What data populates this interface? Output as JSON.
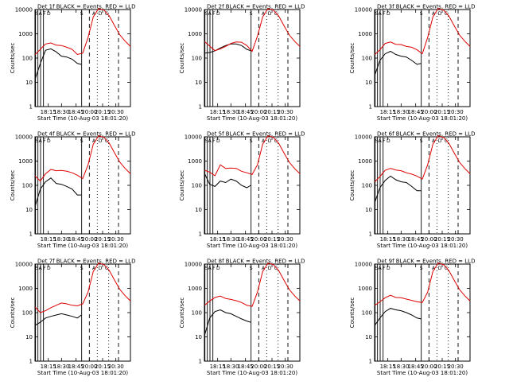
{
  "chart_data": {
    "type": "line",
    "yscale": "log",
    "ylim": [
      1,
      10000
    ],
    "ylabel": "Counts/sec",
    "xlabel": "Start Time (10-Aug-03 18:01:20)",
    "x_range_minutes": [
      9,
      45
    ],
    "x_ticks": [
      "18:15",
      "18:30",
      "18:45",
      "20:00",
      "20:15",
      "20:30"
    ],
    "y_ticks": [
      "1",
      "10",
      "100",
      "1000",
      "10000"
    ],
    "flag_labels": [
      "S",
      "A",
      "F",
      "D",
      "S",
      "A",
      "D",
      "C"
    ],
    "colors": {
      "events": "#000000",
      "lld": "#e00000",
      "axes": "#000000",
      "background": "#ffffff"
    },
    "panels": [
      {
        "title": "Det 1f  BLACK = Events, RED = LLD",
        "series": [
          {
            "name": "BLACK = Events",
            "x": [
              9.1,
              11,
              13,
              15,
              17,
              19,
              21,
              23,
              25,
              26.5
            ],
            "y": [
              14,
              60,
              210,
              240,
              180,
              120,
              110,
              90,
              60,
              55
            ]
          },
          {
            "name": "RED = LLD",
            "x": [
              9.1,
              11,
              13,
              15,
              17,
              19,
              21,
              23,
              25,
              27,
              29,
              31,
              33,
              35,
              37,
              39,
              41,
              43,
              45
            ],
            "y": [
              140,
              230,
              380,
              420,
              340,
              330,
              280,
              230,
              140,
              160,
              700,
              5000,
              11000,
              9500,
              5500,
              2200,
              900,
              500,
              300
            ]
          }
        ]
      },
      {
        "title": "Det 2f  BLACK = Events, RED = LLD",
        "series": [
          {
            "name": "BLACK = Events",
            "x": [
              9.1,
              11,
              13,
              15,
              17,
              19,
              21,
              23,
              25,
              26.5
            ],
            "y": [
              160,
              170,
              200,
              260,
              330,
              380,
              380,
              330,
              230,
              200
            ]
          },
          {
            "name": "RED = LLD",
            "x": [
              9.1,
              11,
              13,
              15,
              17,
              19,
              21,
              23,
              25,
              27,
              29,
              31,
              33,
              35,
              37,
              39,
              41,
              43,
              45
            ],
            "y": [
              480,
              310,
              200,
              240,
              300,
              400,
              460,
              450,
              330,
              190,
              800,
              5000,
              11000,
              9500,
              5500,
              2200,
              900,
              500,
              300
            ]
          }
        ]
      },
      {
        "title": "Det 3f  BLACK = Events, RED = LLD",
        "series": [
          {
            "name": "BLACK = Events",
            "x": [
              9.1,
              11,
              13,
              15,
              17,
              19,
              21,
              23,
              25,
              26.5
            ],
            "y": [
              20,
              80,
              150,
              190,
              140,
              120,
              110,
              80,
              55,
              60
            ]
          },
          {
            "name": "RED = LLD",
            "x": [
              9.1,
              11,
              13,
              15,
              17,
              19,
              21,
              23,
              25,
              27,
              29,
              31,
              33,
              35,
              37,
              39,
              41,
              43,
              45
            ],
            "y": [
              140,
              220,
              400,
              460,
              370,
              360,
              300,
              280,
              220,
              150,
              700,
              5000,
              11000,
              9500,
              5500,
              2200,
              900,
              500,
              300
            ]
          }
        ]
      },
      {
        "title": "Det 4f  BLACK = Events, RED = LLD",
        "series": [
          {
            "name": "BLACK = Events",
            "x": [
              9.1,
              11,
              13,
              15,
              17,
              19,
              21,
              23,
              25,
              26.5
            ],
            "y": [
              14,
              70,
              140,
              200,
              120,
              110,
              90,
              70,
              40,
              40
            ]
          },
          {
            "name": "RED = LLD",
            "x": [
              9.1,
              11,
              13,
              15,
              17,
              19,
              21,
              23,
              25,
              27,
              29,
              31,
              33,
              35,
              37,
              39,
              41,
              43,
              45
            ],
            "y": [
              240,
              150,
              300,
              450,
              400,
              410,
              380,
              330,
              260,
              190,
              700,
              5000,
              11000,
              9500,
              5500,
              2200,
              900,
              500,
              300
            ]
          }
        ]
      },
      {
        "title": "Det 5f  BLACK = Events, RED = LLD",
        "series": [
          {
            "name": "BLACK = Events",
            "x": [
              9.1,
              11,
              13,
              15,
              17,
              19,
              21,
              23,
              25,
              26.5
            ],
            "y": [
              300,
              110,
              90,
              150,
              130,
              180,
              150,
              100,
              80,
              100
            ]
          },
          {
            "name": "RED = LLD",
            "x": [
              9.1,
              11,
              13,
              15,
              17,
              19,
              21,
              23,
              25,
              27,
              29,
              31,
              33,
              35,
              37,
              39,
              41,
              43,
              45
            ],
            "y": [
              420,
              350,
              250,
              700,
              500,
              520,
              500,
              380,
              330,
              280,
              700,
              5000,
              11000,
              9500,
              5500,
              2200,
              900,
              500,
              300
            ]
          }
        ]
      },
      {
        "title": "Det 6f  BLACK = Events, RED = LLD",
        "series": [
          {
            "name": "BLACK = Events",
            "x": [
              9.1,
              11,
              13,
              15,
              17,
              19,
              21,
              23,
              25,
              26.5
            ],
            "y": [
              20,
              80,
              160,
              240,
              170,
              140,
              130,
              90,
              60,
              60
            ]
          },
          {
            "name": "RED = LLD",
            "x": [
              9.1,
              11,
              13,
              15,
              17,
              19,
              21,
              23,
              25,
              27,
              29,
              31,
              33,
              35,
              37,
              39,
              41,
              43,
              45
            ],
            "y": [
              140,
              230,
              420,
              500,
              430,
              400,
              330,
              290,
              240,
              180,
              700,
              5000,
              11000,
              9500,
              5500,
              2200,
              900,
              500,
              300
            ]
          }
        ]
      },
      {
        "title": "Det 7f  BLACK = Events, RED = LLD",
        "series": [
          {
            "name": "BLACK = Events",
            "x": [
              9.1,
              11,
              13,
              15,
              17,
              19,
              21,
              23,
              25,
              26.5
            ],
            "y": [
              30,
              40,
              60,
              70,
              80,
              90,
              80,
              70,
              60,
              80
            ]
          },
          {
            "name": "RED = LLD",
            "x": [
              9.1,
              11,
              13,
              15,
              17,
              19,
              21,
              23,
              25,
              27,
              29,
              31,
              33,
              35,
              37,
              39,
              41,
              43,
              45
            ],
            "y": [
              170,
              100,
              120,
              160,
              200,
              250,
              230,
              200,
              190,
              230,
              700,
              5000,
              11000,
              9500,
              5500,
              2200,
              900,
              500,
              300
            ]
          }
        ]
      },
      {
        "title": "Det 8f  BLACK = Events, RED = LLD",
        "series": [
          {
            "name": "BLACK = Events",
            "x": [
              9.1,
              11,
              13,
              15,
              17,
              19,
              21,
              23,
              25,
              26.5
            ],
            "y": [
              12,
              60,
              110,
              130,
              100,
              90,
              70,
              55,
              45,
              40
            ]
          },
          {
            "name": "RED = LLD",
            "x": [
              9.1,
              11,
              13,
              15,
              17,
              19,
              21,
              23,
              25,
              27,
              29,
              31,
              33,
              35,
              37,
              39,
              41,
              43,
              45
            ],
            "y": [
              200,
              300,
              420,
              480,
              380,
              350,
              310,
              260,
              200,
              180,
              700,
              5000,
              11000,
              9500,
              5500,
              2200,
              900,
              500,
              300
            ]
          }
        ]
      },
      {
        "title": "Det 9f  BLACK = Events, RED = LLD",
        "series": [
          {
            "name": "BLACK = Events",
            "x": [
              9.1,
              11,
              13,
              15,
              17,
              19,
              21,
              23,
              25,
              26.5
            ],
            "y": [
              30,
              60,
              110,
              150,
              130,
              120,
              100,
              80,
              60,
              55
            ]
          },
          {
            "name": "RED = LLD",
            "x": [
              9.1,
              11,
              13,
              15,
              17,
              19,
              21,
              23,
              25,
              27,
              29,
              31,
              33,
              35,
              37,
              39,
              41,
              43,
              45
            ],
            "y": [
              200,
              280,
              410,
              520,
              420,
              410,
              360,
              320,
              280,
              260,
              700,
              5000,
              11000,
              9500,
              5500,
              2200,
              900,
              500,
              300
            ]
          }
        ]
      }
    ]
  }
}
